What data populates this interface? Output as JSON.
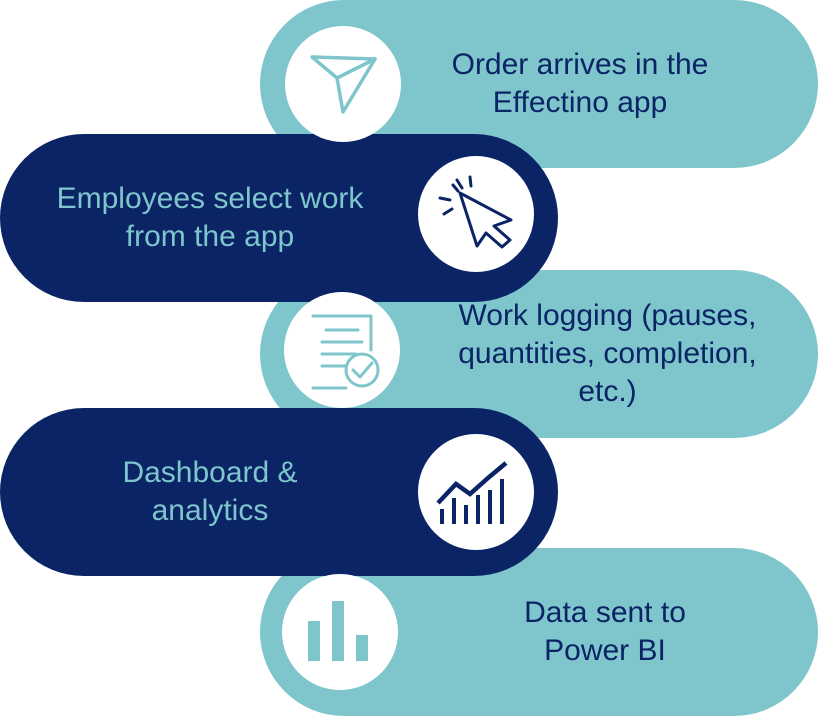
{
  "colors": {
    "light": "#7fc6cc",
    "dark": "#0a2466",
    "icon_dark": "#0a2466",
    "icon_light": "#7fc6cc",
    "text_on_light": "#0a2466",
    "text_on_dark": "#7fc6cc"
  },
  "steps": [
    {
      "text": "Order arrives in the\nEffectino app",
      "icon": "send-icon",
      "side": "right",
      "tone": "light"
    },
    {
      "text": "Employees select work\nfrom the app",
      "icon": "cursor-click-icon",
      "side": "left",
      "tone": "dark"
    },
    {
      "text": "Work logging (pauses,\nquantities, completion,\netc.)",
      "icon": "checked-document-icon",
      "side": "right",
      "tone": "light"
    },
    {
      "text": "Dashboard &\nanalytics",
      "icon": "trend-chart-icon",
      "side": "left",
      "tone": "dark"
    },
    {
      "text": "Data sent to\nPower BI",
      "icon": "bar-chart-icon",
      "side": "right",
      "tone": "light"
    }
  ]
}
